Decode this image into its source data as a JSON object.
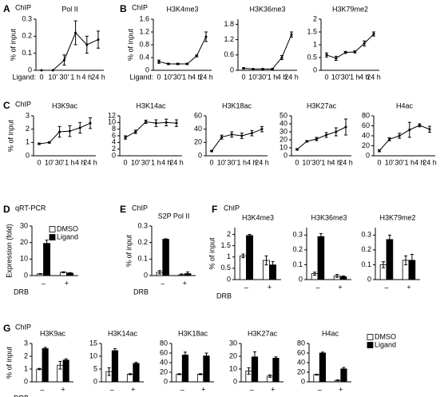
{
  "chart_data": [
    {
      "type": "line",
      "panel": "A",
      "assay": "ChIP",
      "title": "Pol II",
      "ylabel": "% of input",
      "xlabel": "Ligand:",
      "categories": [
        "0",
        "10'",
        "30'",
        "1 h",
        "4 h",
        "24 h"
      ],
      "values": [
        0,
        0,
        0.06,
        0.22,
        0.15,
        0.18
      ],
      "errors": [
        0,
        0,
        0.03,
        0.07,
        0.05,
        0.05
      ],
      "color": "#000000",
      "ylim": [
        0,
        0.3
      ],
      "yticks": [
        0,
        0.1,
        0.2,
        0.3
      ]
    },
    {
      "type": "line",
      "panel": "B",
      "assay": "ChIP",
      "title": "H3K4me3",
      "ylabel": "% of input",
      "xlabel": "Ligand:",
      "categories": [
        "0",
        "10'",
        "30'",
        "1 h",
        "4 h",
        "24 h"
      ],
      "values": [
        0.27,
        0.2,
        0.2,
        0.2,
        0.45,
        1.05
      ],
      "errors": [
        0.05,
        0.02,
        0.02,
        0.02,
        0.03,
        0.15
      ],
      "color": "#000000",
      "ylim": [
        0,
        1.6
      ],
      "yticks": [
        0,
        0.4,
        0.8,
        1.2,
        1.6
      ]
    },
    {
      "type": "line",
      "title": "H3K36me3",
      "categories": [
        "0",
        "10'",
        "30'",
        "1 h",
        "4 h",
        "24 h"
      ],
      "values": [
        0.08,
        0.05,
        0.05,
        0.05,
        0.5,
        1.4
      ],
      "errors": [
        0.02,
        0.01,
        0.01,
        0.01,
        0.08,
        0.1
      ],
      "color": "#000000",
      "ylim": [
        0,
        2
      ],
      "yticks": [
        0,
        0.6,
        1.2,
        1.8
      ]
    },
    {
      "type": "line",
      "title": "H3K79me2",
      "categories": [
        "0",
        "10'",
        "30'",
        "1 h",
        "4 h",
        "24 h"
      ],
      "values": [
        0.6,
        0.47,
        0.7,
        0.72,
        1.05,
        1.42
      ],
      "errors": [
        0.08,
        0.08,
        0.04,
        0.04,
        0.1,
        0.08
      ],
      "color": "#000000",
      "ylim": [
        0,
        2
      ],
      "yticks": [
        0,
        0.5,
        1,
        1.5,
        2
      ]
    },
    {
      "type": "line",
      "panel": "C",
      "assay": "ChIP",
      "title": "H3K9ac",
      "ylabel": "% of input",
      "categories": [
        "0",
        "10'",
        "30'",
        "1 h",
        "4 h",
        "24 h"
      ],
      "values": [
        0.9,
        1.0,
        1.8,
        1.85,
        2.1,
        2.45
      ],
      "errors": [
        0.05,
        0.05,
        0.4,
        0.4,
        0.4,
        0.4
      ],
      "color": "#000000",
      "ylim": [
        0,
        3
      ],
      "yticks": [
        0,
        1,
        2,
        3
      ]
    },
    {
      "type": "line",
      "title": "H3K14ac",
      "categories": [
        "0",
        "10'",
        "30'",
        "1 h",
        "4 h",
        "24 h"
      ],
      "values": [
        5.5,
        7.2,
        10.2,
        9.8,
        10,
        9.8
      ],
      "errors": [
        0.5,
        0.5,
        0.5,
        1,
        1,
        1
      ],
      "color": "#000000",
      "ylim": [
        0,
        12
      ],
      "yticks": [
        0,
        2,
        4,
        6,
        8,
        10,
        12
      ]
    },
    {
      "type": "line",
      "title": "H3K18ac",
      "categories": [
        "0",
        "10'",
        "30'",
        "1 h",
        "4 h",
        "24 h"
      ],
      "values": [
        7,
        28,
        32,
        30,
        34,
        40
      ],
      "errors": [
        1,
        3,
        4,
        4,
        4,
        4
      ],
      "color": "#000000",
      "ylim": [
        0,
        60
      ],
      "yticks": [
        0,
        20,
        40,
        60
      ]
    },
    {
      "type": "line",
      "title": "H3K27ac",
      "categories": [
        "0",
        "10'",
        "30'",
        "1 h",
        "4 h",
        "24 h"
      ],
      "values": [
        8,
        18,
        21,
        26,
        30,
        36
      ],
      "errors": [
        1,
        1,
        2,
        3,
        5,
        10
      ],
      "color": "#000000",
      "ylim": [
        0,
        50
      ],
      "yticks": [
        0,
        10,
        20,
        30,
        40,
        50
      ]
    },
    {
      "type": "line",
      "title": "H4ac",
      "categories": [
        "0",
        "10'",
        "30'",
        "1 h",
        "4 h",
        "24 h"
      ],
      "values": [
        10,
        33,
        40,
        52,
        61,
        53
      ],
      "errors": [
        2,
        3,
        5,
        15,
        3,
        6
      ],
      "color": "#000000",
      "ylim": [
        0,
        80
      ],
      "yticks": [
        0,
        20,
        40,
        60,
        80
      ]
    },
    {
      "type": "bar",
      "panel": "D",
      "assay": "qRT-PCR",
      "ylabel": "Expression (fold)",
      "xlabel": "DRB",
      "categories": [
        "–",
        "+"
      ],
      "series": [
        {
          "name": "DMSO",
          "color": "#ffffff",
          "values": [
            1,
            2
          ],
          "errors": [
            0.2,
            0.3
          ]
        },
        {
          "name": "Ligand",
          "color": "#000000",
          "values": [
            19.5,
            1.5
          ],
          "errors": [
            2,
            0.3
          ]
        }
      ],
      "ylim": [
        0,
        30
      ],
      "yticks": [
        0,
        10,
        20,
        30
      ],
      "legend": true
    },
    {
      "type": "bar",
      "panel": "E",
      "assay": "ChIP",
      "title": "S2P Pol II",
      "ylabel": "% of input",
      "xlabel": "DRB",
      "categories": [
        "–",
        "+"
      ],
      "series": [
        {
          "color": "#ffffff",
          "values": [
            0.02,
            0.005
          ],
          "errors": [
            0.01,
            0.005
          ]
        },
        {
          "color": "#000000",
          "values": [
            0.22,
            0.012
          ],
          "errors": [
            0.003,
            0.01
          ]
        }
      ],
      "ylim": [
        0,
        0.3
      ],
      "yticks": [
        0,
        0.1,
        0.2,
        0.3
      ]
    },
    {
      "type": "bar",
      "panel": "F",
      "assay": "ChIP",
      "title": "H3K4me3",
      "ylabel": "% of input",
      "xlabel": "DRB",
      "categories": [
        "–",
        "+"
      ],
      "series": [
        {
          "color": "#ffffff",
          "values": [
            1.05,
            0.85
          ],
          "errors": [
            0.08,
            0.2
          ]
        },
        {
          "color": "#000000",
          "values": [
            1.95,
            0.65
          ],
          "errors": [
            0.05,
            0.15
          ]
        }
      ],
      "ylim": [
        0,
        2.3
      ],
      "yticks": [
        0,
        0.5,
        1,
        1.5,
        2
      ]
    },
    {
      "type": "bar",
      "title": "H3K36me3",
      "categories": [
        "–",
        "+"
      ],
      "series": [
        {
          "color": "#ffffff",
          "values": [
            0.04,
            0.025
          ],
          "errors": [
            0.01,
            0.01
          ]
        },
        {
          "color": "#000000",
          "values": [
            0.29,
            0.02
          ],
          "errors": [
            0.02,
            0.005
          ]
        }
      ],
      "ylim": [
        0,
        0.35
      ],
      "yticks": [
        0,
        0.1,
        0.2,
        0.3
      ]
    },
    {
      "type": "bar",
      "title": "H3K79me2",
      "categories": [
        "–",
        "+"
      ],
      "series": [
        {
          "color": "#ffffff",
          "values": [
            0.1,
            0.13
          ],
          "errors": [
            0.02,
            0.03
          ]
        },
        {
          "color": "#000000",
          "values": [
            0.27,
            0.13
          ],
          "errors": [
            0.03,
            0.04
          ]
        }
      ],
      "ylim": [
        0,
        0.35
      ],
      "yticks": [
        0,
        0.1,
        0.2,
        0.3
      ]
    },
    {
      "type": "bar",
      "panel": "G",
      "assay": "ChIP",
      "title": "H3K9ac",
      "ylabel": "% of input",
      "xlabel": "DRB",
      "categories": [
        "–",
        "+"
      ],
      "series": [
        {
          "color": "#ffffff",
          "values": [
            1.0,
            1.3
          ],
          "errors": [
            0.05,
            0.3
          ]
        },
        {
          "color": "#000000",
          "values": [
            2.6,
            1.7
          ],
          "errors": [
            0.1,
            0.1
          ]
        }
      ],
      "ylim": [
        0,
        3
      ],
      "yticks": [
        0,
        1,
        2,
        3
      ]
    },
    {
      "type": "bar",
      "title": "H3K14ac",
      "categories": [
        "–",
        "+"
      ],
      "series": [
        {
          "color": "#ffffff",
          "values": [
            4,
            3
          ],
          "errors": [
            1.5,
            0.2
          ]
        },
        {
          "color": "#000000",
          "values": [
            12.2,
            7.2
          ],
          "errors": [
            0.8,
            0.4
          ]
        }
      ],
      "ylim": [
        0,
        15
      ],
      "yticks": [
        0,
        5,
        10,
        15
      ]
    },
    {
      "type": "bar",
      "title": "H3K18ac",
      "categories": [
        "–",
        "+"
      ],
      "series": [
        {
          "color": "#ffffff",
          "values": [
            16,
            16
          ],
          "errors": [
            1,
            1
          ]
        },
        {
          "color": "#000000",
          "values": [
            56,
            54
          ],
          "errors": [
            6,
            6
          ]
        }
      ],
      "ylim": [
        0,
        80
      ],
      "yticks": [
        0,
        20,
        40,
        60,
        80
      ]
    },
    {
      "type": "bar",
      "title": "H3K27ac",
      "categories": [
        "–",
        "+"
      ],
      "series": [
        {
          "color": "#ffffff",
          "values": [
            8.5,
            4.5
          ],
          "errors": [
            2.5,
            1
          ]
        },
        {
          "color": "#000000",
          "values": [
            19.5,
            18.5
          ],
          "errors": [
            4,
            1
          ]
        }
      ],
      "ylim": [
        0,
        30
      ],
      "yticks": [
        0,
        10,
        20,
        30
      ]
    },
    {
      "type": "bar",
      "title": "H4ac",
      "categories": [
        "–",
        "+"
      ],
      "series": [
        {
          "name": "DMSO",
          "color": "#ffffff",
          "values": [
            15,
            3
          ],
          "errors": [
            1,
            1
          ]
        },
        {
          "name": "Ligand",
          "color": "#000000",
          "values": [
            60,
            27
          ],
          "errors": [
            2,
            3
          ]
        }
      ],
      "ylim": [
        0,
        80
      ],
      "yticks": [
        0,
        20,
        40,
        60,
        80
      ],
      "legend": true
    }
  ]
}
